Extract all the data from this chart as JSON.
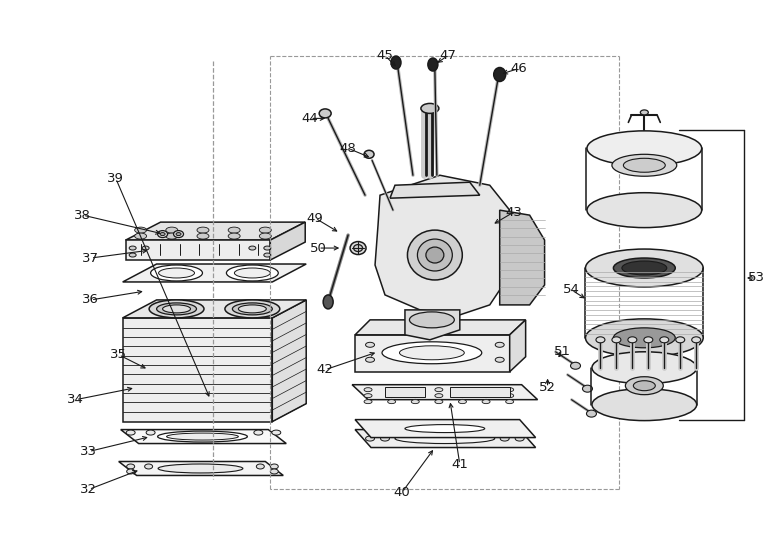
{
  "bg_color": "#ffffff",
  "line_color": "#1a1a1a",
  "label_color": "#1a1a1a",
  "figsize": [
    7.73,
    5.36
  ],
  "dpi": 100,
  "lw_main": 1.1,
  "lw_thin": 0.7,
  "lw_dash": 0.8,
  "font_size": 9.5
}
